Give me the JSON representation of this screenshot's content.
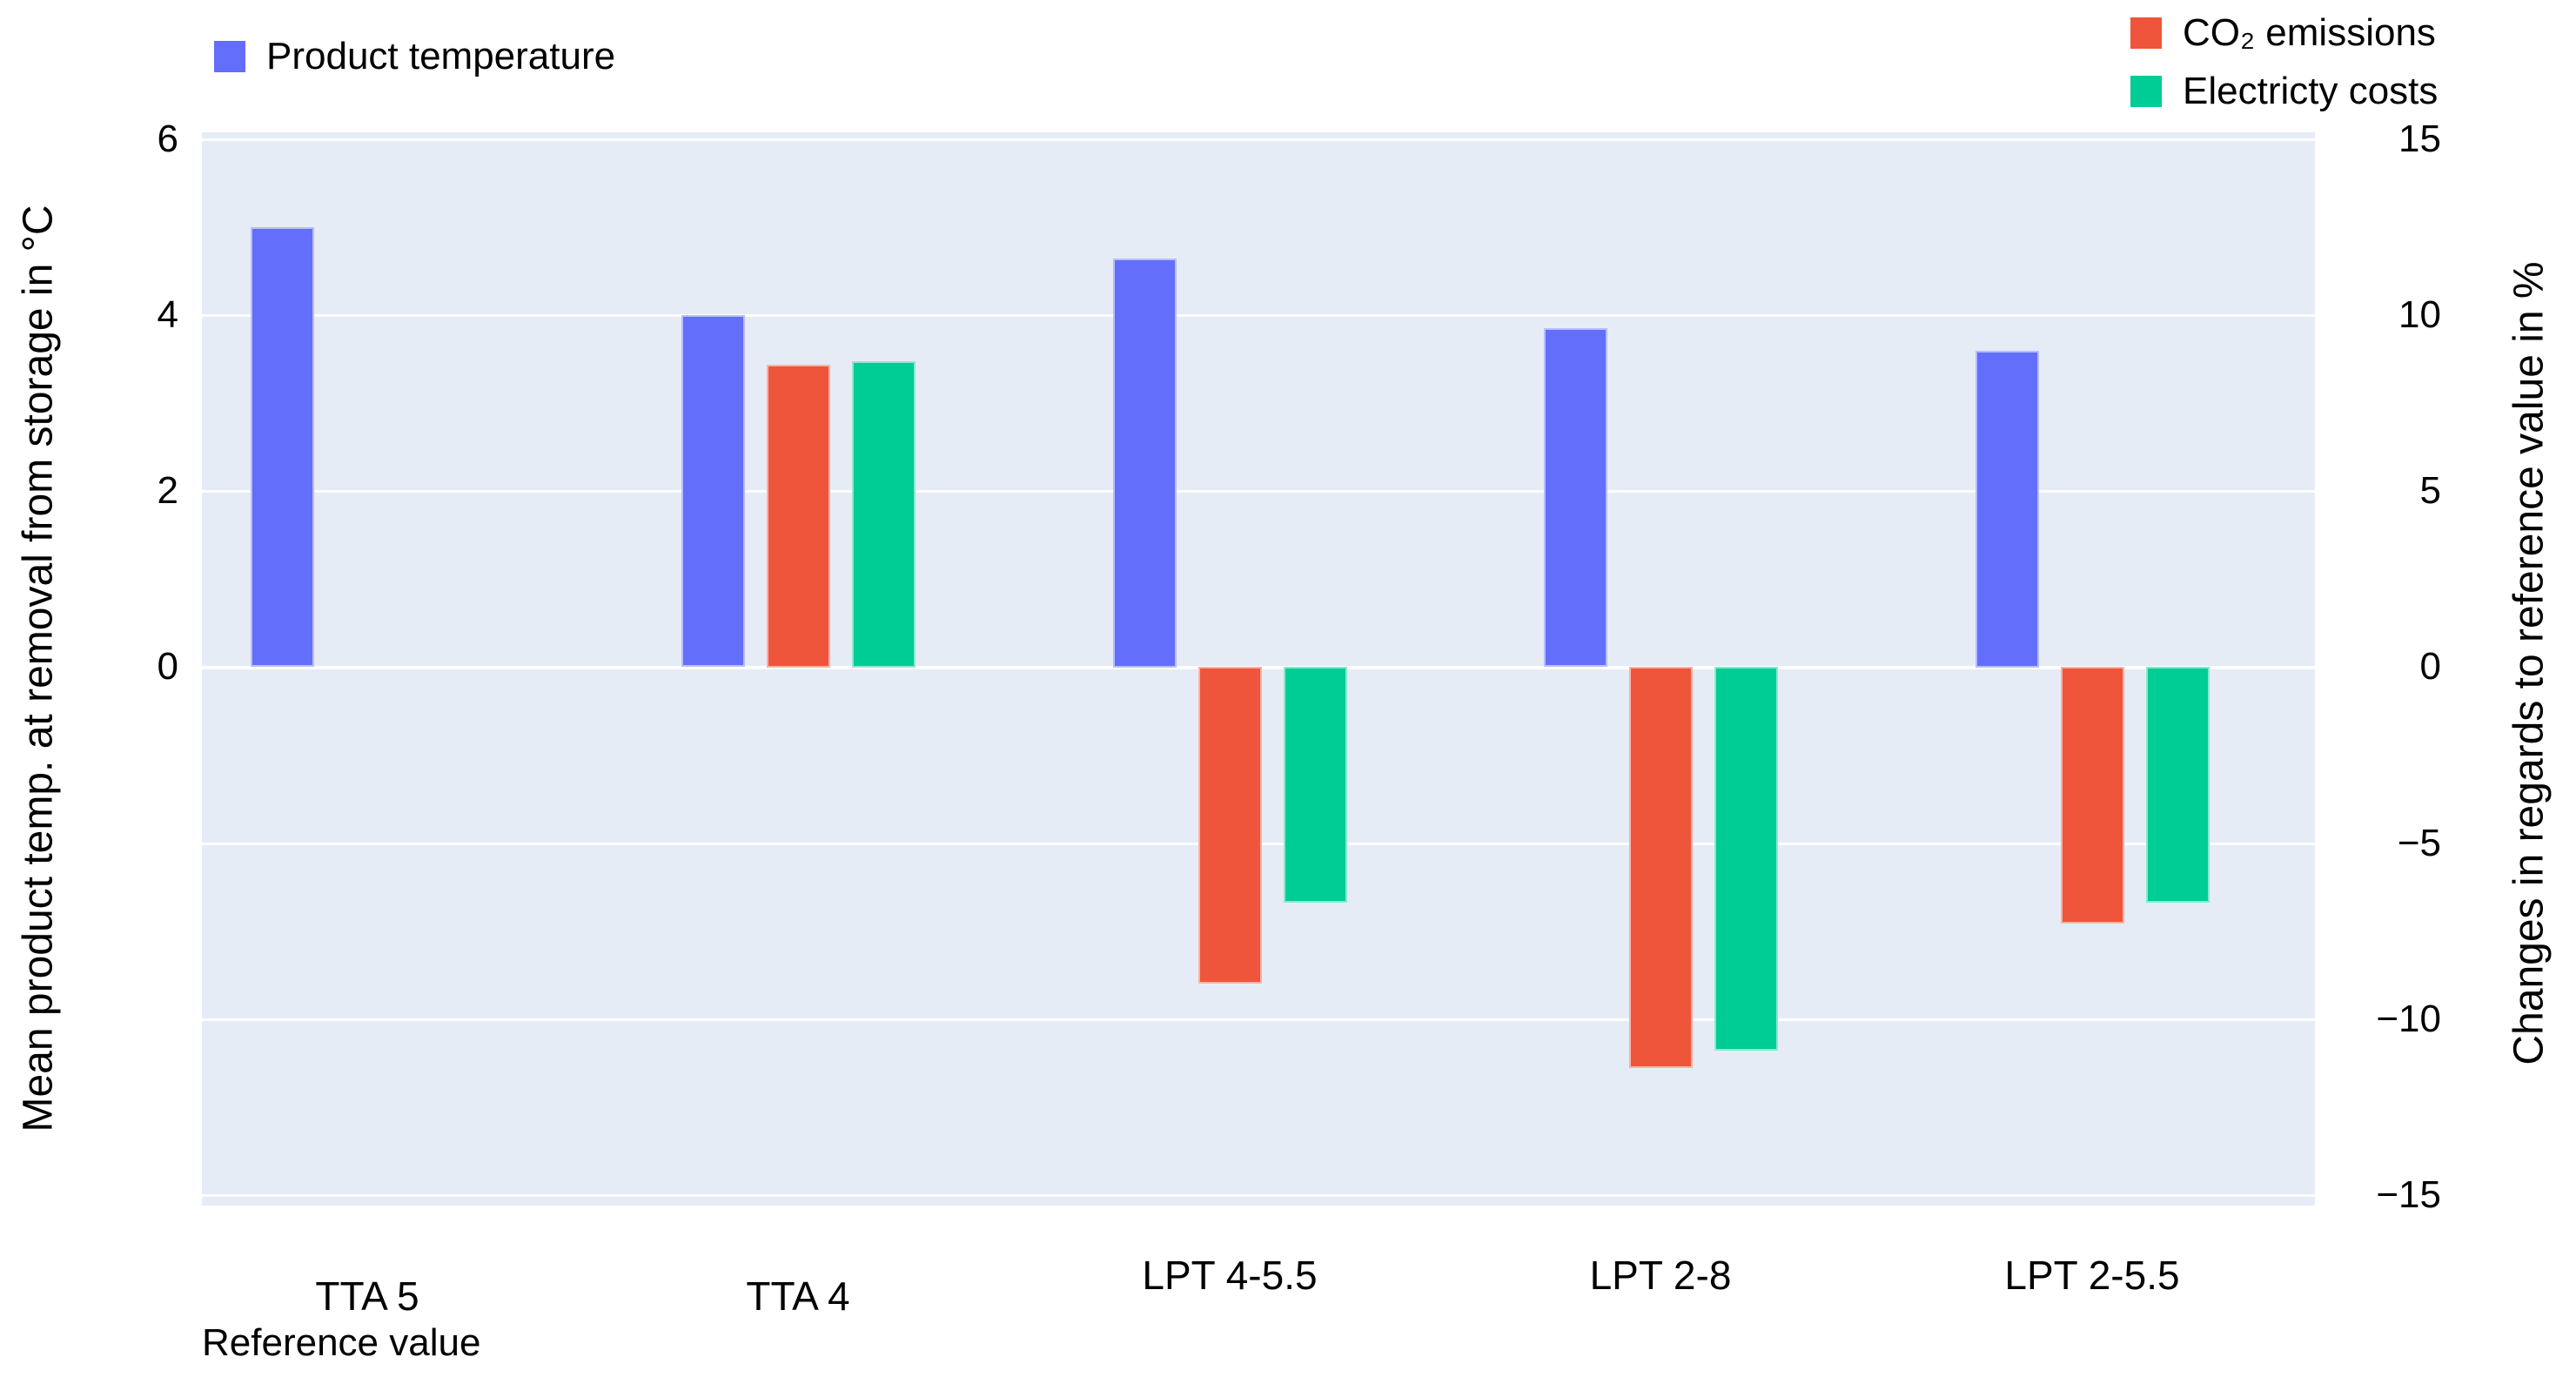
{
  "figure": {
    "background": "#ffffff",
    "plot_background": "#E5ECF6",
    "grid_color": "#ffffff"
  },
  "left_axis": {
    "title": "Mean product temp. at removal from storage in °C",
    "ticks": [
      {
        "label": "6",
        "pct": 15
      },
      {
        "label": "4",
        "pct": 10
      },
      {
        "label": "2",
        "pct": 5
      },
      {
        "label": "0",
        "pct": 0
      }
    ]
  },
  "right_axis": {
    "title": "Changes in regards to reference value in %",
    "ticks": [
      {
        "label": "15",
        "pct": 15
      },
      {
        "label": "10",
        "pct": 10
      },
      {
        "label": "5",
        "pct": 5
      },
      {
        "label": "0",
        "pct": 0
      },
      {
        "label": "−5",
        "pct": -5
      },
      {
        "label": "−10",
        "pct": -10
      },
      {
        "label": "−15",
        "pct": -15
      }
    ]
  },
  "legend": {
    "product_temperature": "Product temperature",
    "co2_emissions": "CO₂ emissions",
    "electricity_costs": "Electricty costs"
  },
  "annotation": "Reference value",
  "chart_data": {
    "type": "bar",
    "categories": [
      "TTA 5",
      "TTA 4",
      "LPT 4-5.5",
      "LPT 2-8",
      "LPT 2-5.5"
    ],
    "series": [
      {
        "name": "Product temperature",
        "axis": "left",
        "unit": "°C",
        "color": "#636EFA",
        "values": [
          5.0,
          4.0,
          4.65,
          3.85,
          3.6
        ]
      },
      {
        "name": "CO₂ emissions",
        "axis": "right",
        "unit": "%",
        "color": "#EF553B",
        "values": [
          null,
          8.6,
          -9.0,
          -11.4,
          -7.3
        ]
      },
      {
        "name": "Electricty costs",
        "axis": "right",
        "unit": "%",
        "color": "#00CC96",
        "values": [
          null,
          8.7,
          -6.7,
          -10.9,
          -6.7
        ]
      }
    ],
    "title": "",
    "xlabel": "",
    "left_ylabel": "Mean product temp. at removal from storage in °C",
    "right_ylabel": "Changes in regards to reference value in %",
    "left_ylim": [
      -6.1,
      6.1
    ],
    "right_ylim": [
      -15.2,
      15.2
    ],
    "left_to_right_scale": 2.5,
    "grid": true,
    "legend_position": "top",
    "annotation_under_first_category": "Reference value"
  }
}
